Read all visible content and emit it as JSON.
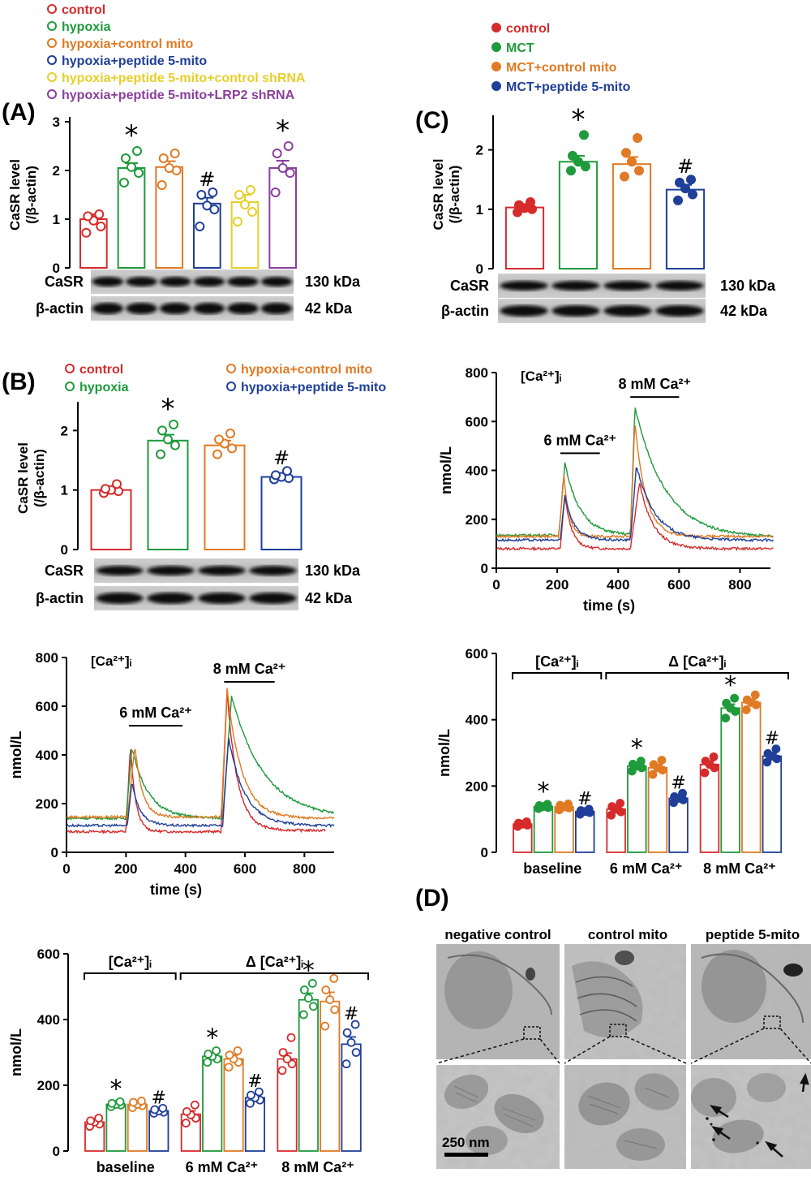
{
  "colors": {
    "control": "#d62b2b",
    "hypoxia": "#1f9a3c",
    "control_mito": "#e07a24",
    "peptide_mito": "#1f3f99",
    "control_shrna": "#e6cf2a",
    "lrp2_shrna": "#8a3f9c",
    "axis": "#000000"
  },
  "panel_labels": {
    "a": "(A)",
    "b": "(B)",
    "c": "(C)",
    "d": "(D)"
  },
  "common": {
    "casr_ylabel_1": "CaSR level",
    "casr_ylabel_2": "(/β-actin)",
    "nmol": "nmol/L",
    "time_label": "time (s)",
    "casr": "CaSR",
    "bactin": "β-actin",
    "kda130": "130 kDa",
    "kda42": "42 kDa",
    "star": "*",
    "hash": "#",
    "ca_i": "[Ca²⁺]ᵢ",
    "delta_ca_i": "Δ [Ca²⁺]ᵢ",
    "six_mM": "6 mM Ca²⁺",
    "eight_mM": "8 mM Ca²⁺",
    "baseline": "baseline"
  },
  "legend_a": [
    "control",
    "hypoxia",
    "hypoxia+control mito",
    "hypoxia+peptide 5-mito",
    "hypoxia+peptide 5-mito+control shRNA",
    "hypoxia+peptide 5-mito+LRP2 shRNA"
  ],
  "legend_b": [
    "control",
    "hypoxia",
    "hypoxia+control mito",
    "hypoxia+peptide 5-mito"
  ],
  "legend_c": [
    "control",
    "MCT",
    "MCT+control mito",
    "MCT+peptide 5-mito"
  ],
  "panel_d": {
    "headers": [
      "negative control",
      "control mito",
      "peptide 5-mito"
    ],
    "scale_bar": "250 nm"
  },
  "chart_data": [
    {
      "id": "A_bar",
      "type": "bar",
      "ylabel": "CaSR level (/β-actin)",
      "ylim": [
        0,
        3
      ],
      "yticks": [
        0,
        1,
        2,
        3
      ],
      "series": [
        {
          "name": "control",
          "mean": 1.0,
          "sem": 0.1,
          "points": [
            0.72,
            0.85,
            0.97,
            1.06,
            1.1
          ],
          "mark": ""
        },
        {
          "name": "hypoxia",
          "mean": 2.05,
          "sem": 0.1,
          "points": [
            1.75,
            1.95,
            2.07,
            2.25,
            2.4
          ],
          "mark": "*"
        },
        {
          "name": "hypoxia+control mito",
          "mean": 2.07,
          "sem": 0.12,
          "points": [
            1.7,
            2.0,
            2.05,
            2.25,
            2.35
          ],
          "mark": ""
        },
        {
          "name": "hypoxia+peptide 5-mito",
          "mean": 1.32,
          "sem": 0.12,
          "points": [
            0.85,
            1.2,
            1.28,
            1.5,
            1.55
          ],
          "mark": "#"
        },
        {
          "name": "hypoxia+peptide 5-mito+control shRNA",
          "mean": 1.35,
          "sem": 0.15,
          "points": [
            0.95,
            1.15,
            1.3,
            1.5,
            1.6
          ],
          "mark": ""
        },
        {
          "name": "hypoxia+peptide 5-mito+LRP2 shRNA",
          "mean": 2.05,
          "sem": 0.15,
          "points": [
            1.55,
            1.95,
            2.05,
            2.35,
            2.5
          ],
          "mark": "*"
        }
      ]
    },
    {
      "id": "B_bar",
      "type": "bar",
      "ylabel": "CaSR level (/β-actin)",
      "ylim": [
        0,
        2.4
      ],
      "yticks": [
        0,
        1,
        2
      ],
      "series": [
        {
          "name": "control",
          "mean": 1.0,
          "sem": 0.04,
          "points": [
            0.95,
            0.98,
            1.0,
            1.02,
            1.1
          ],
          "mark": ""
        },
        {
          "name": "hypoxia",
          "mean": 1.83,
          "sem": 0.1,
          "points": [
            1.6,
            1.75,
            1.85,
            2.0,
            2.1
          ],
          "mark": "*"
        },
        {
          "name": "hypoxia+control mito",
          "mean": 1.75,
          "sem": 0.08,
          "points": [
            1.6,
            1.7,
            1.78,
            1.85,
            1.95
          ],
          "mark": ""
        },
        {
          "name": "hypoxia+peptide 5-mito",
          "mean": 1.22,
          "sem": 0.04,
          "points": [
            1.18,
            1.2,
            1.22,
            1.25,
            1.32
          ],
          "mark": "#"
        }
      ]
    },
    {
      "id": "C_bar",
      "type": "bar",
      "ylabel": "CaSR level (/β-actin)",
      "ylim": [
        0,
        2.5
      ],
      "yticks": [
        0,
        1,
        2
      ],
      "series": [
        {
          "name": "control",
          "mean": 1.03,
          "sem": 0.04,
          "points": [
            0.95,
            1.0,
            1.02,
            1.07,
            1.12
          ],
          "mark": ""
        },
        {
          "name": "MCT",
          "mean": 1.8,
          "sem": 0.1,
          "points": [
            1.65,
            1.72,
            1.8,
            1.9,
            2.25
          ],
          "mark": "*"
        },
        {
          "name": "MCT+control mito",
          "mean": 1.76,
          "sem": 0.12,
          "points": [
            1.55,
            1.65,
            1.8,
            1.95,
            2.2
          ],
          "mark": ""
        },
        {
          "name": "MCT+peptide 5-mito",
          "mean": 1.33,
          "sem": 0.08,
          "points": [
            1.15,
            1.25,
            1.35,
            1.45,
            1.5
          ],
          "mark": "#"
        }
      ]
    },
    {
      "id": "B_trace",
      "type": "line",
      "xlabel": "time (s)",
      "ylabel": "nmol/L",
      "xlim": [
        0,
        900
      ],
      "ylim": [
        0,
        800
      ],
      "xticks": [
        0,
        200,
        400,
        600,
        800
      ],
      "yticks": [
        0,
        200,
        400,
        600,
        800
      ],
      "bars": [
        {
          "label": "6 mM Ca²⁺",
          "x0": 210,
          "x1": 390,
          "y": 520
        },
        {
          "label": "8 mM Ca²⁺",
          "x0": 530,
          "x1": 700,
          "y": 700
        }
      ],
      "series": [
        {
          "name": "control",
          "base1": 85,
          "x_on1": 200,
          "peak1": 440,
          "t1": 215,
          "base2": 90,
          "x_on2": 520,
          "peak2": 660,
          "t2": 540,
          "decay": 35,
          "end": 870
        },
        {
          "name": "hypoxia",
          "base1": 140,
          "x_on1": 200,
          "peak1": 430,
          "t1": 220,
          "base2": 140,
          "x_on2": 525,
          "peak2": 640,
          "t2": 555,
          "decay": 110,
          "end": 900
        },
        {
          "name": "hypoxia+control mito",
          "base1": 145,
          "x_on1": 205,
          "peak1": 440,
          "t1": 230,
          "base2": 140,
          "x_on2": 520,
          "peak2": 670,
          "t2": 540,
          "decay": 50,
          "end": 900
        },
        {
          "name": "hypoxia+peptide 5-mito",
          "base1": 110,
          "x_on1": 205,
          "peak1": 290,
          "t1": 220,
          "base2": 110,
          "x_on2": 525,
          "peak2": 470,
          "t2": 545,
          "decay": 55,
          "end": 900
        }
      ]
    },
    {
      "id": "C_trace",
      "type": "line",
      "xlabel": "time (s)",
      "ylabel": "nmol/L",
      "xlim": [
        0,
        900
      ],
      "ylim": [
        0,
        800
      ],
      "xticks": [
        0,
        200,
        400,
        600,
        800
      ],
      "yticks": [
        0,
        200,
        400,
        600,
        800
      ],
      "bars": [
        {
          "label": "6 mM Ca²⁺",
          "x0": 210,
          "x1": 340,
          "y": 470
        },
        {
          "label": "8 mM Ca²⁺",
          "x0": 440,
          "x1": 600,
          "y": 700
        }
      ],
      "series": [
        {
          "name": "control",
          "base1": 80,
          "x_on1": 210,
          "peak1": 300,
          "t1": 225,
          "base2": 80,
          "x_on2": 440,
          "peak2": 350,
          "t2": 470,
          "decay": 45,
          "end": 910
        },
        {
          "name": "MCT",
          "base1": 135,
          "x_on1": 205,
          "peak1": 430,
          "t1": 225,
          "base2": 125,
          "x_on2": 440,
          "peak2": 660,
          "t2": 455,
          "decay": 100,
          "end": 910
        },
        {
          "name": "MCT+control mito",
          "base1": 130,
          "x_on1": 205,
          "peak1": 380,
          "t1": 222,
          "base2": 130,
          "x_on2": 440,
          "peak2": 600,
          "t2": 455,
          "decay": 35,
          "end": 910
        },
        {
          "name": "MCT+peptide 5-mito",
          "base1": 115,
          "x_on1": 210,
          "peak1": 300,
          "t1": 225,
          "base2": 115,
          "x_on2": 440,
          "peak2": 420,
          "t2": 460,
          "decay": 60,
          "end": 910
        }
      ]
    },
    {
      "id": "B_group",
      "type": "bar",
      "ylabel": "nmol/L",
      "categories": [
        "baseline",
        "6 mM Ca²⁺",
        "8 mM Ca²⁺"
      ],
      "ylim": [
        0,
        600
      ],
      "yticks": [
        0,
        200,
        400,
        600
      ],
      "groups": [
        [
          {
            "mean": 88,
            "sem": 5,
            "points": [
              75,
              82,
              88,
              92,
              100
            ],
            "mark": ""
          },
          {
            "mean": 142,
            "sem": 4,
            "points": [
              135,
              140,
              142,
              145,
              150
            ],
            "mark": "*"
          },
          {
            "mean": 142,
            "sem": 5,
            "points": [
              132,
              138,
              142,
              148,
              152
            ],
            "mark": ""
          },
          {
            "mean": 122,
            "sem": 4,
            "points": [
              115,
              118,
              122,
              126,
              130
            ],
            "mark": "#"
          }
        ],
        [
          {
            "mean": 112,
            "sem": 10,
            "points": [
              85,
              100,
              110,
              120,
              140
            ],
            "mark": ""
          },
          {
            "mean": 288,
            "sem": 8,
            "points": [
              270,
              280,
              288,
              295,
              305
            ],
            "mark": "*"
          },
          {
            "mean": 280,
            "sem": 12,
            "points": [
              255,
              270,
              280,
              292,
              305
            ],
            "mark": ""
          },
          {
            "mean": 162,
            "sem": 8,
            "points": [
              145,
              155,
              162,
              170,
              180
            ],
            "mark": "#"
          }
        ],
        [
          {
            "mean": 280,
            "sem": 18,
            "points": [
              245,
              265,
              280,
              300,
              345
            ],
            "mark": ""
          },
          {
            "mean": 460,
            "sem": 20,
            "points": [
              415,
              440,
              465,
              490,
              510
            ],
            "mark": "*"
          },
          {
            "mean": 455,
            "sem": 28,
            "points": [
              380,
              430,
              460,
              490,
              525
            ],
            "mark": ""
          },
          {
            "mean": 325,
            "sem": 22,
            "points": [
              265,
              300,
              330,
              360,
              385
            ],
            "mark": "#"
          }
        ]
      ]
    },
    {
      "id": "C_group",
      "type": "bar",
      "ylabel": "nmol/L",
      "categories": [
        "baseline",
        "6 mM Ca²⁺",
        "8 mM Ca²⁺"
      ],
      "ylim": [
        0,
        600
      ],
      "yticks": [
        0,
        200,
        400,
        600
      ],
      "groups": [
        [
          {
            "mean": 85,
            "sem": 4,
            "points": [
              78,
              82,
              85,
              88,
              92
            ],
            "mark": ""
          },
          {
            "mean": 138,
            "sem": 3,
            "points": [
              132,
              135,
              138,
              141,
              145
            ],
            "mark": "*"
          },
          {
            "mean": 137,
            "sem": 4,
            "points": [
              128,
              134,
              137,
              142,
              146
            ],
            "mark": ""
          },
          {
            "mean": 123,
            "sem": 3,
            "points": [
              115,
              120,
              123,
              126,
              130
            ],
            "mark": "#"
          }
        ],
        [
          {
            "mean": 130,
            "sem": 7,
            "points": [
              112,
              122,
              130,
              138,
              148
            ],
            "mark": ""
          },
          {
            "mean": 260,
            "sem": 7,
            "points": [
              245,
              255,
              260,
              266,
              275
            ],
            "mark": "*"
          },
          {
            "mean": 255,
            "sem": 9,
            "points": [
              235,
              248,
              255,
              265,
              278
            ],
            "mark": ""
          },
          {
            "mean": 163,
            "sem": 6,
            "points": [
              150,
              158,
              163,
              168,
              178
            ],
            "mark": "#"
          }
        ],
        [
          {
            "mean": 265,
            "sem": 10,
            "points": [
              240,
              255,
              265,
              275,
              288
            ],
            "mark": ""
          },
          {
            "mean": 435,
            "sem": 12,
            "points": [
              405,
              425,
              435,
              450,
              465
            ],
            "mark": "*"
          },
          {
            "mean": 452,
            "sem": 10,
            "points": [
              430,
              445,
              452,
              460,
              475
            ],
            "mark": ""
          },
          {
            "mean": 290,
            "sem": 8,
            "points": [
              272,
              282,
              290,
              298,
              312
            ],
            "mark": "#"
          }
        ]
      ]
    }
  ]
}
